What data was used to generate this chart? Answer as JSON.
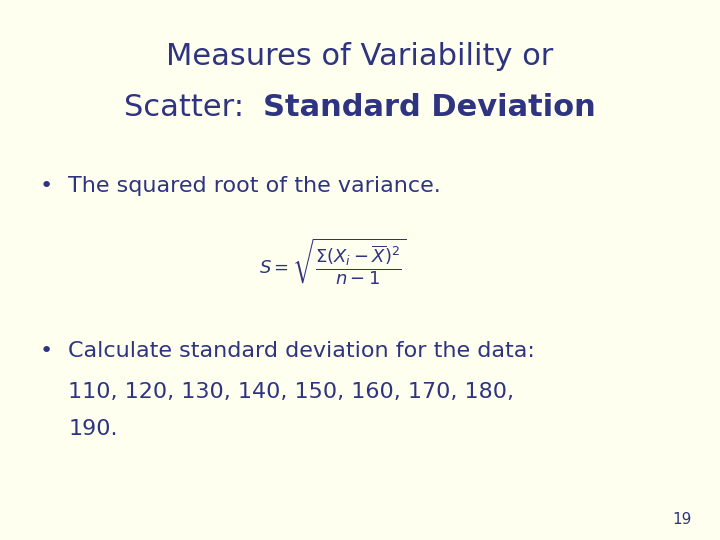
{
  "background_color": "#FFFFF0",
  "title_line1": "Measures of Variability or",
  "title_line2_normal": "Scatter:  ",
  "title_line2_bold": "Standard Deviation",
  "text_color": "#2E3480",
  "bullet1": "The squared root of the variance.",
  "bullet2_line1": "Calculate standard deviation for the data:",
  "bullet2_line2": "110, 120, 130, 140, 150, 160, 170, 180,",
  "bullet2_line3": "190.",
  "page_number": "19",
  "title_fontsize": 22,
  "body_fontsize": 16,
  "formula_fontsize": 13,
  "page_fontsize": 11
}
